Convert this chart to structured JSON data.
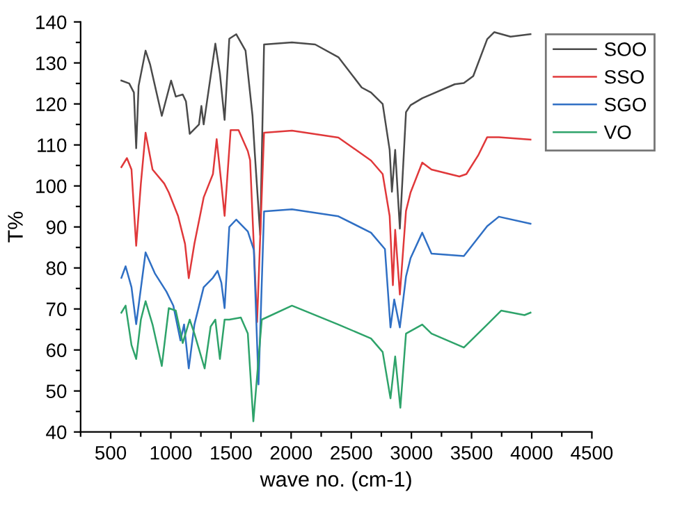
{
  "chart_data": {
    "type": "line",
    "xlabel": "wave no. (cm-1)",
    "ylabel": "T%",
    "xlim": [
      250,
      4500
    ],
    "xticks": [
      {
        "value": 250,
        "label": null
      },
      500,
      {
        "value": 750,
        "label": null
      },
      1000,
      {
        "value": 1250,
        "label": null
      },
      1500,
      {
        "value": 1750,
        "label": null
      },
      2000,
      {
        "value": 2250,
        "label": null
      },
      2500,
      {
        "value": 2750,
        "label": null
      },
      3000,
      {
        "value": 3250,
        "label": null
      },
      3500,
      {
        "value": 3750,
        "label": null
      },
      4000,
      {
        "value": 4250,
        "label": null
      },
      4500
    ],
    "ylim": [
      40,
      140
    ],
    "yticks": [
      40,
      {
        "value": 45,
        "label": null
      },
      50,
      {
        "value": 55,
        "label": null
      },
      60,
      {
        "value": 65,
        "label": null
      },
      70,
      {
        "value": 75,
        "label": null
      },
      80,
      {
        "value": 85,
        "label": null
      },
      90,
      {
        "value": 95,
        "label": null
      },
      100,
      {
        "value": 105,
        "label": null
      },
      110,
      {
        "value": 115,
        "label": null
      },
      120,
      {
        "value": 125,
        "label": null
      },
      130,
      {
        "value": 135,
        "label": null
      },
      140
    ],
    "grid": false,
    "legend": "top right",
    "marker": "none",
    "line_style": "solid",
    "series": [
      {
        "name": "SOO",
        "color": "#4a4a4a",
        "x": [
          589,
          654,
          693,
          712,
          732,
          790,
          828,
          925,
          1002,
          1041,
          1099,
          1126,
          1157,
          1234,
          1254,
          1273,
          1370,
          1408,
          1447,
          1486,
          1544,
          1621,
          1679,
          1698,
          1743,
          1775,
          2007,
          2200,
          2393,
          2587,
          2664,
          2761,
          2819,
          2838,
          2865,
          2904,
          2955,
          2993,
          3090,
          3360,
          3436,
          3514,
          3630,
          3688,
          3824,
          3990
        ],
        "values": [
          125.7,
          125,
          122.8,
          109.2,
          124.4,
          133,
          129.6,
          117.1,
          125.7,
          121.8,
          122.3,
          120.6,
          112.7,
          115,
          119.5,
          115,
          134.7,
          127.4,
          116.1,
          135.9,
          137,
          133,
          117.1,
          108,
          88,
          134.5,
          135,
          134.5,
          131.4,
          124,
          122.8,
          120,
          108.8,
          98.6,
          108.8,
          89.6,
          118,
          119.7,
          121.4,
          124.8,
          125.1,
          126.8,
          135.8,
          137.5,
          136.4,
          137
        ]
      },
      {
        "name": "SSO",
        "color": "#e0383a",
        "x": [
          589,
          635,
          673,
          712,
          751,
          790,
          848,
          945,
          983,
          1060,
          1118,
          1149,
          1196,
          1273,
          1350,
          1381,
          1420,
          1447,
          1497,
          1563,
          1640,
          1659,
          1717,
          1775,
          2007,
          2393,
          2664,
          2761,
          2819,
          2846,
          2865,
          2904,
          2955,
          2993,
          3090,
          3167,
          3399,
          3457,
          3554,
          3630,
          3727,
          3990
        ],
        "values": [
          104.6,
          106.8,
          104,
          85.4,
          100.6,
          113,
          104,
          100.6,
          98.4,
          92.7,
          85.9,
          77.5,
          85.9,
          97.2,
          102.9,
          111.4,
          100.6,
          92.7,
          113.6,
          113.6,
          108.5,
          106.3,
          66.8,
          113,
          113.5,
          111.8,
          106.2,
          102.9,
          92.7,
          75.8,
          89.3,
          73.5,
          93.9,
          98.4,
          105.7,
          104,
          102.3,
          102.9,
          107.4,
          111.9,
          111.9,
          111.3
        ]
      },
      {
        "name": "SGO",
        "color": "#2f6fc4",
        "x": [
          589,
          624,
          673,
          712,
          790,
          867,
          964,
          1021,
          1080,
          1110,
          1149,
          1196,
          1273,
          1350,
          1389,
          1420,
          1447,
          1486,
          1544,
          1640,
          1690,
          1729,
          1775,
          2007,
          2393,
          2664,
          2780,
          2826,
          2857,
          2904,
          2955,
          2993,
          3090,
          3167,
          3436,
          3630,
          3727,
          3990
        ],
        "values": [
          77.6,
          80.4,
          75.3,
          66.3,
          83.8,
          78.7,
          74.2,
          70.8,
          62.3,
          66.2,
          55.5,
          66.2,
          75.3,
          77.6,
          79.3,
          76.4,
          70.2,
          90,
          91.8,
          88.9,
          84.4,
          51.6,
          93.8,
          94.3,
          92.6,
          88.6,
          84.6,
          65.5,
          72.3,
          65.5,
          77.9,
          82.4,
          88.6,
          83.5,
          82.9,
          90.2,
          92.5,
          90.8
        ]
      },
      {
        "name": "VO",
        "color": "#2ea36a",
        "x": [
          589,
          624,
          673,
          712,
          751,
          790,
          848,
          925,
          983,
          1041,
          1099,
          1157,
          1196,
          1281,
          1331,
          1370,
          1408,
          1447,
          1486,
          1582,
          1640,
          1686,
          1756,
          2007,
          2393,
          2664,
          2761,
          2826,
          2865,
          2908,
          2955,
          3090,
          3167,
          3436,
          3630,
          3746,
          3940,
          3990
        ],
        "values": [
          69.1,
          70.8,
          61.2,
          57.8,
          67.4,
          71.9,
          66.2,
          56.1,
          70.2,
          69.6,
          61.7,
          67.4,
          64,
          55.5,
          65.7,
          67.4,
          57.8,
          67.4,
          67.4,
          67.9,
          64,
          42.6,
          67.4,
          70.8,
          66.2,
          62.8,
          59.5,
          48.2,
          58.4,
          45.9,
          64,
          66.2,
          64,
          60.6,
          66.2,
          69.6,
          68.5,
          69.1
        ]
      }
    ]
  }
}
